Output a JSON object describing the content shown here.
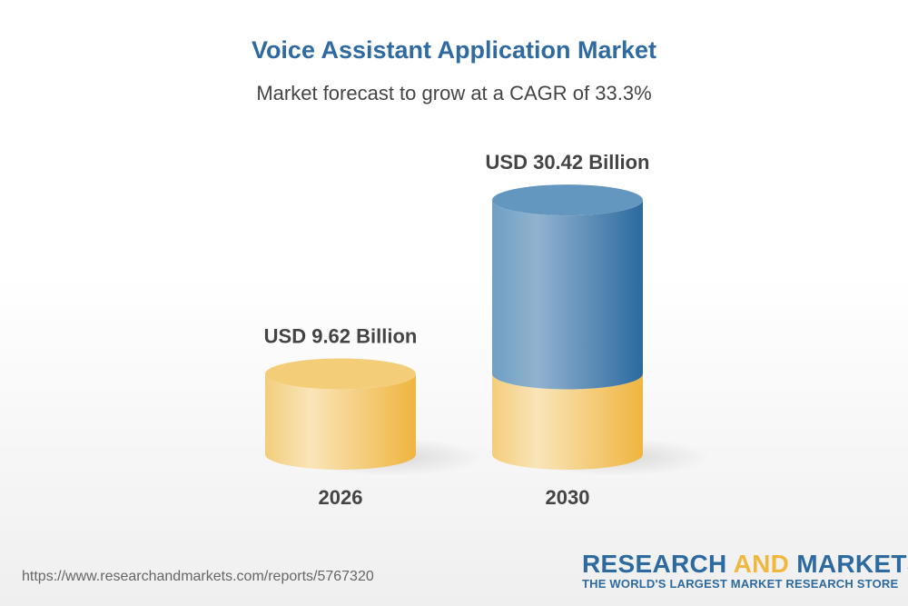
{
  "chart_data": {
    "type": "bar",
    "style": "3d-cylinder",
    "title": "Voice Assistant Application Market",
    "subtitle": "Market forecast to grow at a CAGR of 33.3%",
    "categories": [
      "2026",
      "2030"
    ],
    "values": [
      9.62,
      30.42
    ],
    "data_labels": [
      "USD 9.62 Billion",
      "USD 30.42 Billion"
    ],
    "unit": "USD Billion",
    "colors": {
      "base": "#f2c05a",
      "growth": "#3f7bab"
    }
  },
  "footer": {
    "url": "https://www.researchandmarkets.com/reports/5767320",
    "logo_part1": "RESEARCH ",
    "logo_part2": "AND",
    "logo_part3": " MARKETS",
    "tagline": "THE WORLD'S LARGEST MARKET RESEARCH STORE"
  }
}
